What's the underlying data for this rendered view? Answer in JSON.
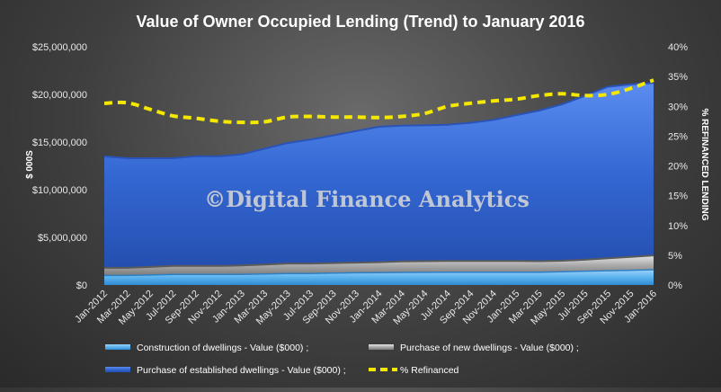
{
  "chart_data": {
    "type": "area",
    "title": "Value of Owner Occupied Lending (Trend) to January 2016",
    "ylabel": "$ 000S",
    "y2label": "% REFINANCED LENDING",
    "ylim": [
      0,
      25000000
    ],
    "y2lim": [
      0,
      40
    ],
    "yticks": [
      "$0",
      "$5,000,000",
      "$10,000,000",
      "$15,000,000",
      "$20,000,000",
      "$25,000,000"
    ],
    "y2ticks": [
      "0%",
      "5%",
      "10%",
      "15%",
      "20%",
      "25%",
      "30%",
      "35%",
      "40%"
    ],
    "xticklabels": [
      "Jan-2012",
      "Mar-2012",
      "May-2012",
      "Jul-2012",
      "Sep-2012",
      "Nov-2012",
      "Jan-2013",
      "Mar-2013",
      "May-2013",
      "Jul-2013",
      "Sep-2013",
      "Nov-2013",
      "Jan-2014",
      "Mar-2014",
      "May-2014",
      "Jul-2014",
      "Sep-2014",
      "Nov-2014",
      "Jan-2015",
      "Mar-2015",
      "May-2015",
      "Jul-2015",
      "Sep-2015",
      "Nov-2015",
      "Jan-2016"
    ],
    "stack_order": [
      "Construction of dwellings - Value ($000) ;",
      "Purchase of new dwellings - Value ($000) ;",
      "Purchase of established dwellings - Value ($000) ;"
    ],
    "series": [
      {
        "name": "Construction of dwellings - Value ($000) ;",
        "kind": "stacked-area",
        "color": "#5bb3ee",
        "values": [
          1000000,
          1000000,
          1050000,
          1100000,
          1100000,
          1100000,
          1100000,
          1150000,
          1200000,
          1200000,
          1250000,
          1280000,
          1300000,
          1320000,
          1330000,
          1350000,
          1350000,
          1350000,
          1350000,
          1350000,
          1400000,
          1450000,
          1500000,
          1550000,
          1600000
        ]
      },
      {
        "name": "Purchase of new dwellings - Value ($000) ;",
        "kind": "stacked-area",
        "color": "#b9b9b9",
        "values": [
          800000,
          800000,
          850000,
          900000,
          900000,
          900000,
          950000,
          1000000,
          1050000,
          1050000,
          1050000,
          1070000,
          1100000,
          1150000,
          1170000,
          1170000,
          1170000,
          1170000,
          1170000,
          1150000,
          1150000,
          1200000,
          1300000,
          1400000,
          1500000
        ]
      },
      {
        "name": "Purchase of established dwellings - Value ($000) ;",
        "kind": "stacked-area",
        "color": "#3a6fd8",
        "values": [
          11700000,
          11500000,
          11400000,
          11300000,
          11500000,
          11500000,
          11650000,
          12150000,
          12650000,
          13000000,
          13400000,
          13800000,
          14200000,
          14250000,
          14250000,
          14300000,
          14500000,
          14800000,
          15300000,
          15800000,
          16400000,
          17200000,
          18000000,
          18100000,
          18100000
        ]
      },
      {
        "name": "% Refinanced",
        "kind": "line",
        "axis": "y2",
        "color": "#f5e800",
        "values": [
          30.5,
          30.6,
          29.5,
          28.4,
          28.0,
          27.5,
          27.3,
          27.4,
          28.2,
          28.3,
          28.2,
          28.2,
          28.1,
          28.3,
          28.8,
          30.0,
          30.5,
          30.9,
          31.2,
          31.8,
          32.1,
          31.8,
          32.0,
          33.0,
          34.4
        ]
      }
    ],
    "watermark": "©Digital Finance Analytics",
    "legend_position": "bottom",
    "grid": false
  }
}
